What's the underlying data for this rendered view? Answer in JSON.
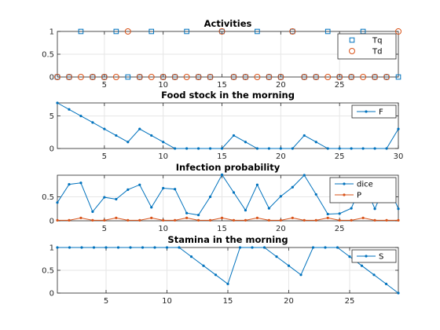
{
  "colors": {
    "blue": "#0072BD",
    "orange": "#D95319",
    "grid": "#e6e6e6",
    "axis": "#262626"
  },
  "chart_data": [
    {
      "type": "scatter",
      "title": "Activities",
      "x": [
        1,
        2,
        3,
        4,
        5,
        6,
        7,
        8,
        9,
        10,
        11,
        12,
        13,
        14,
        15,
        16,
        17,
        18,
        19,
        20,
        21,
        22,
        23,
        24,
        25,
        26,
        27,
        28,
        29,
        30
      ],
      "xlim": [
        1,
        30
      ],
      "ylim": [
        0,
        1
      ],
      "xticks": [
        5,
        10,
        15,
        20,
        25
      ],
      "yticks": [
        0,
        0.5,
        1
      ],
      "ytick_labels": [
        "0",
        "0.5",
        "1"
      ],
      "grid": true,
      "legend": "top-right",
      "series": [
        {
          "name": "Tq",
          "marker": "square",
          "color": "#0072BD",
          "values": [
            0,
            0,
            1,
            0,
            0,
            1,
            0,
            0,
            1,
            0,
            0,
            1,
            0,
            0,
            1,
            0,
            0,
            1,
            0,
            0,
            1,
            0,
            0,
            1,
            0,
            0,
            1,
            0,
            0,
            0
          ]
        },
        {
          "name": "Td",
          "marker": "circle",
          "color": "#D95319",
          "values": [
            0,
            0,
            0,
            0,
            0,
            0,
            1,
            0,
            0,
            0,
            0,
            0,
            0,
            0,
            1,
            0,
            0,
            0,
            0,
            0,
            1,
            0,
            0,
            0,
            0,
            0,
            0,
            0,
            0,
            1
          ]
        }
      ]
    },
    {
      "type": "line",
      "title": "Food stock in the morning",
      "x": [
        1,
        2,
        3,
        4,
        5,
        6,
        7,
        8,
        9,
        10,
        11,
        12,
        13,
        14,
        15,
        16,
        17,
        18,
        19,
        20,
        21,
        22,
        23,
        24,
        25,
        26,
        27,
        28,
        29,
        30
      ],
      "xlim": [
        1,
        30
      ],
      "ylim": [
        0,
        7
      ],
      "xticks": [
        5,
        10,
        15,
        20,
        25,
        30
      ],
      "yticks": [
        0,
        5
      ],
      "ytick_labels": [
        "0",
        "5"
      ],
      "grid": true,
      "legend": "top-right",
      "series": [
        {
          "name": "F",
          "color": "#0072BD",
          "values": [
            7,
            6,
            5,
            4,
            3,
            2,
            1,
            3,
            2,
            1,
            0,
            0,
            0,
            0,
            0,
            2,
            1,
            0,
            0,
            0,
            0,
            2,
            1,
            0,
            0,
            0,
            0,
            0,
            0,
            3
          ]
        }
      ]
    },
    {
      "type": "line",
      "title": "Infection probability",
      "x": [
        1,
        2,
        3,
        4,
        5,
        6,
        7,
        8,
        9,
        10,
        11,
        12,
        13,
        14,
        15,
        16,
        17,
        18,
        19,
        20,
        21,
        22,
        23,
        24,
        25,
        26,
        27,
        28,
        29,
        30
      ],
      "xlim": [
        1,
        30
      ],
      "ylim": [
        0,
        0.95
      ],
      "xticks": [
        5,
        10,
        15,
        20,
        25
      ],
      "yticks": [
        0,
        0.5
      ],
      "ytick_labels": [
        "0",
        "0.5"
      ],
      "grid": true,
      "legend": "top-right",
      "series": [
        {
          "name": "dice",
          "color": "#0072BD",
          "values": [
            0.38,
            0.76,
            0.79,
            0.19,
            0.49,
            0.45,
            0.65,
            0.75,
            0.28,
            0.68,
            0.66,
            0.16,
            0.12,
            0.5,
            0.96,
            0.59,
            0.22,
            0.75,
            0.26,
            0.51,
            0.7,
            0.95,
            0.55,
            0.14,
            0.15,
            0.26,
            0.84,
            0.25,
            0.81,
            0.25
          ]
        },
        {
          "name": "P",
          "color": "#D95319",
          "values": [
            0.01,
            0.01,
            0.06,
            0.01,
            0.01,
            0.06,
            0.01,
            0.01,
            0.06,
            0.01,
            0.01,
            0.06,
            0.01,
            0.01,
            0.06,
            0.01,
            0.01,
            0.06,
            0.01,
            0.01,
            0.06,
            0.01,
            0.01,
            0.06,
            0.01,
            0.01,
            0.06,
            0.01,
            0.01,
            0.01
          ]
        }
      ]
    },
    {
      "type": "line",
      "title": "Stamina in the morning",
      "x": [
        1,
        2,
        3,
        4,
        5,
        6,
        7,
        8,
        9,
        10,
        11,
        12,
        13,
        14,
        15,
        16,
        17,
        18,
        19,
        20,
        21,
        22,
        23,
        24,
        25,
        26,
        27,
        28,
        29
      ],
      "xlim": [
        1,
        29
      ],
      "ylim": [
        0,
        1
      ],
      "xticks": [
        5,
        10,
        15,
        20,
        25
      ],
      "yticks": [
        0,
        0.5,
        1
      ],
      "ytick_labels": [
        "0",
        "0.5",
        "1"
      ],
      "grid": true,
      "legend": "top-right",
      "series": [
        {
          "name": "S",
          "color": "#0072BD",
          "values": [
            1,
            1,
            1,
            1,
            1,
            1,
            1,
            1,
            1,
            1,
            1,
            0.8,
            0.6,
            0.4,
            0.2,
            1,
            1,
            1,
            0.8,
            0.6,
            0.4,
            1,
            1,
            1,
            0.8,
            0.6,
            0.4,
            0.2,
            0
          ]
        }
      ]
    }
  ]
}
